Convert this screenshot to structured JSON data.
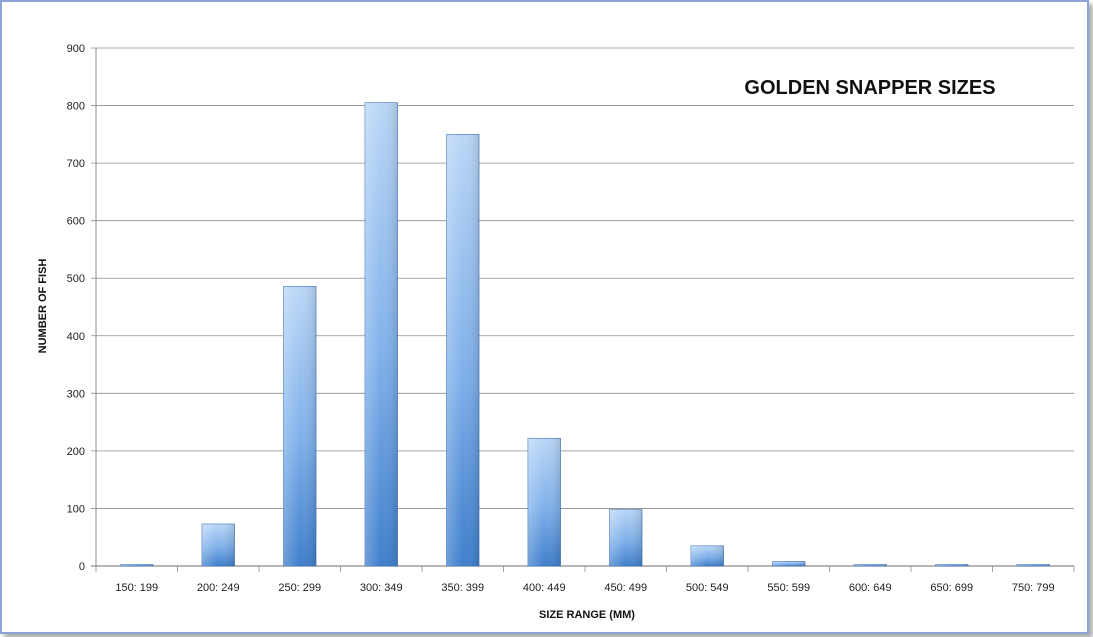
{
  "chart_data": {
    "type": "bar",
    "title": "GOLDEN SNAPPER SIZES",
    "xlabel": "SIZE RANGE (MM)",
    "ylabel": "NUMBER OF FISH",
    "categories": [
      "150: 199",
      "200: 249",
      "250: 299",
      "300: 349",
      "350: 399",
      "400: 449",
      "450: 499",
      "500: 549",
      "550: 599",
      "600: 649",
      "650: 699",
      "750: 799"
    ],
    "values": [
      2,
      73,
      486,
      805,
      750,
      222,
      98,
      35,
      8,
      2,
      2,
      2
    ],
    "ylim": [
      0,
      900
    ],
    "yticks": [
      0,
      100,
      200,
      300,
      400,
      500,
      600,
      700,
      800,
      900
    ],
    "grid": true,
    "legend": "none",
    "colors": {
      "bar_light": "#b9d6f6",
      "bar_mid": "#7fb0ea",
      "bar_dark": "#3f7fcc",
      "grid": "#8c8c8c"
    }
  }
}
